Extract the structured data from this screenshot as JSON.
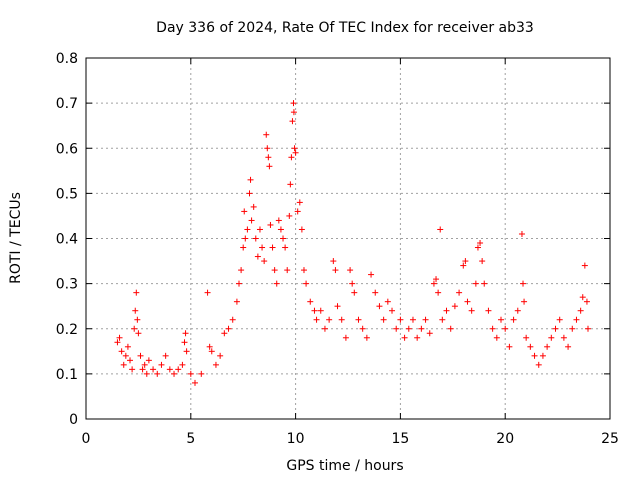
{
  "chart_data": {
    "type": "scatter",
    "title": "Day 336 of 2024, Rate Of TEC Index for receiver ab33",
    "xlabel": "GPS time / hours",
    "ylabel": "ROTI / TECUs",
    "xlim": [
      0,
      25
    ],
    "ylim": [
      0,
      0.8
    ],
    "x_ticks": [
      0,
      5,
      10,
      15,
      20,
      25
    ],
    "y_ticks": [
      0,
      0.1,
      0.2,
      0.3,
      0.4,
      0.5,
      0.6,
      0.7,
      0.8
    ],
    "x_tick_labels": [
      "0",
      "5",
      "10",
      "15",
      "20",
      "25"
    ],
    "y_tick_labels": [
      "0",
      "0.1",
      "0.2",
      "0.3",
      "0.4",
      "0.5",
      "0.6",
      "0.7",
      "0.8"
    ],
    "grid": true,
    "marker": "+",
    "color": "#ff0000",
    "series": [
      {
        "points": [
          [
            1.5,
            0.17
          ],
          [
            1.6,
            0.18
          ],
          [
            1.7,
            0.15
          ],
          [
            1.8,
            0.12
          ],
          [
            1.9,
            0.14
          ],
          [
            2.0,
            0.16
          ],
          [
            2.1,
            0.13
          ],
          [
            2.2,
            0.11
          ],
          [
            2.3,
            0.2
          ],
          [
            2.35,
            0.24
          ],
          [
            2.4,
            0.28
          ],
          [
            2.45,
            0.22
          ],
          [
            2.5,
            0.19
          ],
          [
            2.6,
            0.14
          ],
          [
            2.7,
            0.11
          ],
          [
            2.8,
            0.12
          ],
          [
            2.9,
            0.1
          ],
          [
            3.0,
            0.13
          ],
          [
            3.2,
            0.11
          ],
          [
            3.4,
            0.1
          ],
          [
            3.6,
            0.12
          ],
          [
            3.8,
            0.14
          ],
          [
            4.0,
            0.11
          ],
          [
            4.2,
            0.1
          ],
          [
            4.4,
            0.11
          ],
          [
            4.6,
            0.12
          ],
          [
            4.7,
            0.17
          ],
          [
            4.75,
            0.19
          ],
          [
            4.8,
            0.15
          ],
          [
            5.0,
            0.1
          ],
          [
            5.2,
            0.08
          ],
          [
            5.5,
            0.1
          ],
          [
            5.8,
            0.28
          ],
          [
            5.9,
            0.16
          ],
          [
            6.0,
            0.15
          ],
          [
            6.2,
            0.12
          ],
          [
            6.4,
            0.14
          ],
          [
            6.6,
            0.19
          ],
          [
            6.8,
            0.2
          ],
          [
            7.0,
            0.22
          ],
          [
            7.2,
            0.26
          ],
          [
            7.3,
            0.3
          ],
          [
            7.4,
            0.33
          ],
          [
            7.5,
            0.38
          ],
          [
            7.55,
            0.46
          ],
          [
            7.6,
            0.4
          ],
          [
            7.7,
            0.42
          ],
          [
            7.8,
            0.5
          ],
          [
            7.85,
            0.53
          ],
          [
            7.9,
            0.44
          ],
          [
            8.0,
            0.47
          ],
          [
            8.1,
            0.4
          ],
          [
            8.2,
            0.36
          ],
          [
            8.3,
            0.42
          ],
          [
            8.4,
            0.38
          ],
          [
            8.5,
            0.35
          ],
          [
            8.6,
            0.63
          ],
          [
            8.65,
            0.6
          ],
          [
            8.7,
            0.58
          ],
          [
            8.75,
            0.56
          ],
          [
            8.8,
            0.43
          ],
          [
            8.9,
            0.38
          ],
          [
            9.0,
            0.33
          ],
          [
            9.1,
            0.3
          ],
          [
            9.2,
            0.44
          ],
          [
            9.3,
            0.42
          ],
          [
            9.4,
            0.4
          ],
          [
            9.5,
            0.38
          ],
          [
            9.6,
            0.33
          ],
          [
            9.7,
            0.45
          ],
          [
            9.75,
            0.52
          ],
          [
            9.8,
            0.58
          ],
          [
            9.85,
            0.66
          ],
          [
            9.9,
            0.7
          ],
          [
            9.92,
            0.68
          ],
          [
            9.95,
            0.6
          ],
          [
            10.0,
            0.59
          ],
          [
            10.1,
            0.46
          ],
          [
            10.2,
            0.48
          ],
          [
            10.3,
            0.42
          ],
          [
            10.4,
            0.33
          ],
          [
            10.5,
            0.3
          ],
          [
            10.7,
            0.26
          ],
          [
            10.9,
            0.24
          ],
          [
            11.0,
            0.22
          ],
          [
            11.2,
            0.24
          ],
          [
            11.4,
            0.2
          ],
          [
            11.6,
            0.22
          ],
          [
            11.8,
            0.35
          ],
          [
            11.9,
            0.33
          ],
          [
            12.0,
            0.25
          ],
          [
            12.2,
            0.22
          ],
          [
            12.4,
            0.18
          ],
          [
            12.6,
            0.33
          ],
          [
            12.7,
            0.3
          ],
          [
            12.8,
            0.28
          ],
          [
            13.0,
            0.22
          ],
          [
            13.2,
            0.2
          ],
          [
            13.4,
            0.18
          ],
          [
            13.6,
            0.32
          ],
          [
            13.8,
            0.28
          ],
          [
            14.0,
            0.25
          ],
          [
            14.2,
            0.22
          ],
          [
            14.4,
            0.26
          ],
          [
            14.6,
            0.24
          ],
          [
            14.8,
            0.2
          ],
          [
            15.0,
            0.22
          ],
          [
            15.2,
            0.18
          ],
          [
            15.4,
            0.2
          ],
          [
            15.6,
            0.22
          ],
          [
            15.8,
            0.18
          ],
          [
            16.0,
            0.2
          ],
          [
            16.2,
            0.22
          ],
          [
            16.4,
            0.19
          ],
          [
            16.6,
            0.3
          ],
          [
            16.7,
            0.31
          ],
          [
            16.8,
            0.28
          ],
          [
            16.9,
            0.42
          ],
          [
            17.0,
            0.22
          ],
          [
            17.2,
            0.24
          ],
          [
            17.4,
            0.2
          ],
          [
            17.6,
            0.25
          ],
          [
            17.8,
            0.28
          ],
          [
            18.0,
            0.34
          ],
          [
            18.1,
            0.35
          ],
          [
            18.2,
            0.26
          ],
          [
            18.4,
            0.24
          ],
          [
            18.6,
            0.3
          ],
          [
            18.7,
            0.38
          ],
          [
            18.8,
            0.39
          ],
          [
            18.9,
            0.35
          ],
          [
            19.0,
            0.3
          ],
          [
            19.2,
            0.24
          ],
          [
            19.4,
            0.2
          ],
          [
            19.6,
            0.18
          ],
          [
            19.8,
            0.22
          ],
          [
            20.0,
            0.2
          ],
          [
            20.2,
            0.16
          ],
          [
            20.4,
            0.22
          ],
          [
            20.6,
            0.24
          ],
          [
            20.8,
            0.41
          ],
          [
            20.85,
            0.3
          ],
          [
            20.9,
            0.26
          ],
          [
            21.0,
            0.18
          ],
          [
            21.2,
            0.16
          ],
          [
            21.4,
            0.14
          ],
          [
            21.6,
            0.12
          ],
          [
            21.8,
            0.14
          ],
          [
            22.0,
            0.16
          ],
          [
            22.2,
            0.18
          ],
          [
            22.4,
            0.2
          ],
          [
            22.6,
            0.22
          ],
          [
            22.8,
            0.18
          ],
          [
            23.0,
            0.16
          ],
          [
            23.2,
            0.2
          ],
          [
            23.4,
            0.22
          ],
          [
            23.6,
            0.24
          ],
          [
            23.7,
            0.27
          ],
          [
            23.8,
            0.34
          ],
          [
            23.9,
            0.26
          ],
          [
            23.95,
            0.2
          ]
        ]
      }
    ]
  }
}
